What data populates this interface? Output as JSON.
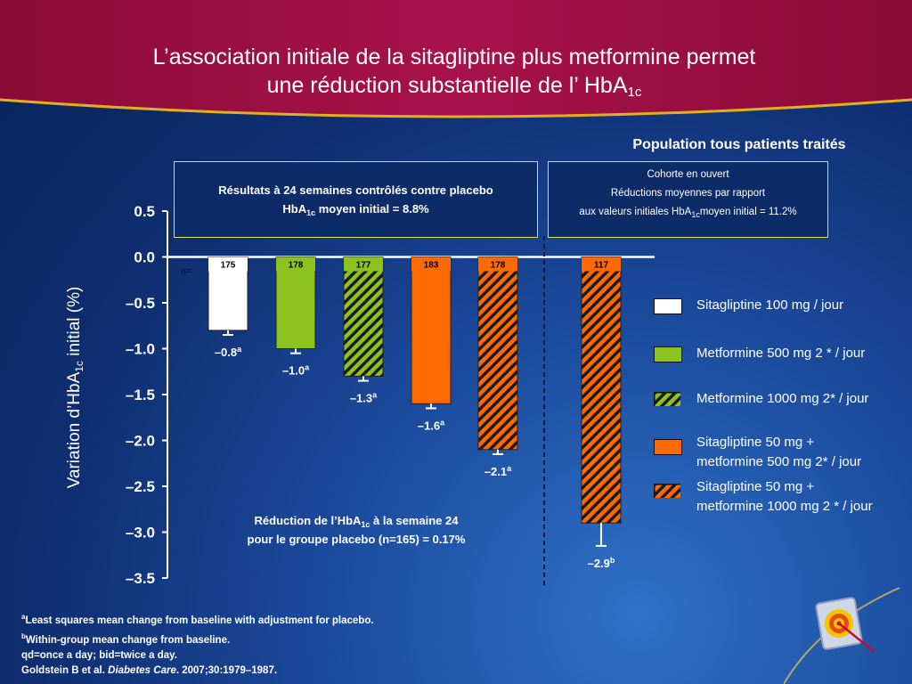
{
  "header": {
    "title_line1": "L’association initiale de la sitagliptine plus metformine permet",
    "title_line2_main": "une réduction substantielle de l’ HbA",
    "title_line2_sub": "1c"
  },
  "population_title": "Population tous patients traités",
  "box_controlled": {
    "line1": "Résultats à 24 semaines contrôlés contre placebo",
    "line2_pre": "HbA",
    "line2_sub": "1c",
    "line2_post": " moyen initial = 8.8%"
  },
  "box_open": {
    "line1": "Cohorte en ouvert",
    "line2": "Réductions moyennes par rapport",
    "line3_pre": "aux valeurs initiales   HbA",
    "line3_sub": "1c",
    "line3_post": "moyen initial = 11.2%"
  },
  "y_axis": {
    "label_pre": "Variation  d’HbA",
    "label_sub": "1c",
    "label_post": " initial (%)"
  },
  "n_label": "n=",
  "placebo_note": {
    "line1_pre": "Réduction de l’HbA",
    "line1_sub": "1c",
    "line1_post": "  à la semaine 24",
    "line2": "pour le groupe placebo (n=165) = 0.17%"
  },
  "legend": [
    {
      "label": "Sitagliptine 100 mg / jour"
    },
    {
      "label": "Metformine 500 mg 2 * / jour"
    },
    {
      "label": "Metformine 1000 mg 2* / jour"
    },
    {
      "label": "Sitagliptine 50 mg +\nmetformine 500 mg 2* / jour"
    },
    {
      "label": "Sitagliptine 50 mg +\nmetformine 1000 mg 2 * / jour"
    }
  ],
  "footnotes": {
    "a_sup": "a",
    "a_text": "Least squares mean change from baseline with adjustment for placebo.",
    "b_sup": "b",
    "b_text": "Within-group mean change from baseline.",
    "qd": "qd=once a day; bid=twice a day.",
    "ref_pre": "Goldstein B et al. ",
    "ref_journal": "Diabetes Care",
    "ref_post": ". 2007;30:1979–1987."
  },
  "colors": {
    "white_bar": "#ffffff",
    "green": "#8cc31e",
    "orange": "#ff6a00",
    "hatch_dark": "#1a1a1a",
    "box_border": "#d7e84a",
    "header_red": "#9b0f3e"
  },
  "chart_data": {
    "type": "bar",
    "ylim": [
      -3.5,
      0.5
    ],
    "yticks": [
      "0.5",
      "0.0",
      "–0.5",
      "–1.0",
      "–1.5",
      "–2.0",
      "–2.5",
      "–3.0",
      "–3.5"
    ],
    "grid": false,
    "legend_position": "right",
    "series": [
      {
        "name": "Sitagliptine 100 mg / jour",
        "n": "175",
        "value": -0.8,
        "label": "–0.8",
        "sup": "a",
        "fill": "white",
        "hatched": false,
        "error": 0.05
      },
      {
        "name": "Metformine 500 mg 2 * / jour",
        "n": "178",
        "value": -1.0,
        "label": "–1.0",
        "sup": "a",
        "fill": "green",
        "hatched": false,
        "error": 0.05
      },
      {
        "name": "Metformine 1000 mg 2* / jour",
        "n": "177",
        "value": -1.3,
        "label": "–1.3",
        "sup": "a",
        "fill": "green",
        "hatched": true,
        "error": 0.05
      },
      {
        "name": "Sitagliptine 50 mg + metformine 500 mg 2* / jour",
        "n": "183",
        "value": -1.6,
        "label": "–1.6",
        "sup": "a",
        "fill": "orange",
        "hatched": false,
        "error": 0.05
      },
      {
        "name": "Sitagliptine 50 mg + metformine 1000 mg 2 * / jour",
        "n": "178",
        "value": -2.1,
        "label": "–2.1",
        "sup": "a",
        "fill": "orange",
        "hatched": true,
        "error": 0.05
      },
      {
        "name": "Sitagliptine 50 mg + metformine 1000 mg 2 * / jour (ouvert)",
        "n": "117",
        "value": -2.9,
        "label": "–2.9",
        "sup": "b",
        "fill": "orange",
        "hatched": true,
        "error": 0.25
      }
    ]
  }
}
